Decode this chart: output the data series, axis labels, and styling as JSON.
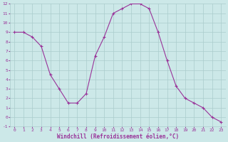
{
  "x": [
    0,
    1,
    2,
    3,
    4,
    5,
    6,
    7,
    8,
    9,
    10,
    11,
    12,
    13,
    14,
    15,
    16,
    17,
    18,
    19,
    20,
    21,
    22,
    23
  ],
  "y": [
    9.0,
    9.0,
    8.5,
    7.5,
    4.5,
    3.0,
    1.5,
    1.5,
    2.5,
    6.5,
    8.5,
    11.0,
    11.5,
    12.0,
    12.0,
    11.5,
    9.0,
    6.0,
    3.3,
    2.0,
    1.5,
    1.0,
    0.0,
    -0.5
  ],
  "line_color": "#993399",
  "marker": "+",
  "marker_color": "#993399",
  "bg_color": "#cce8e8",
  "grid_color": "#aacccc",
  "xlabel": "Windchill (Refroidissement éolien,°C)",
  "xlabel_color": "#993399",
  "tick_color": "#993399",
  "ylim": [
    -1,
    12
  ],
  "xlim": [
    -0.5,
    23.5
  ],
  "yticks": [
    -1,
    0,
    1,
    2,
    3,
    4,
    5,
    6,
    7,
    8,
    9,
    10,
    11,
    12
  ],
  "xticks": [
    0,
    1,
    2,
    3,
    4,
    5,
    6,
    7,
    8,
    9,
    10,
    11,
    12,
    13,
    14,
    15,
    16,
    17,
    18,
    19,
    20,
    21,
    22,
    23
  ]
}
